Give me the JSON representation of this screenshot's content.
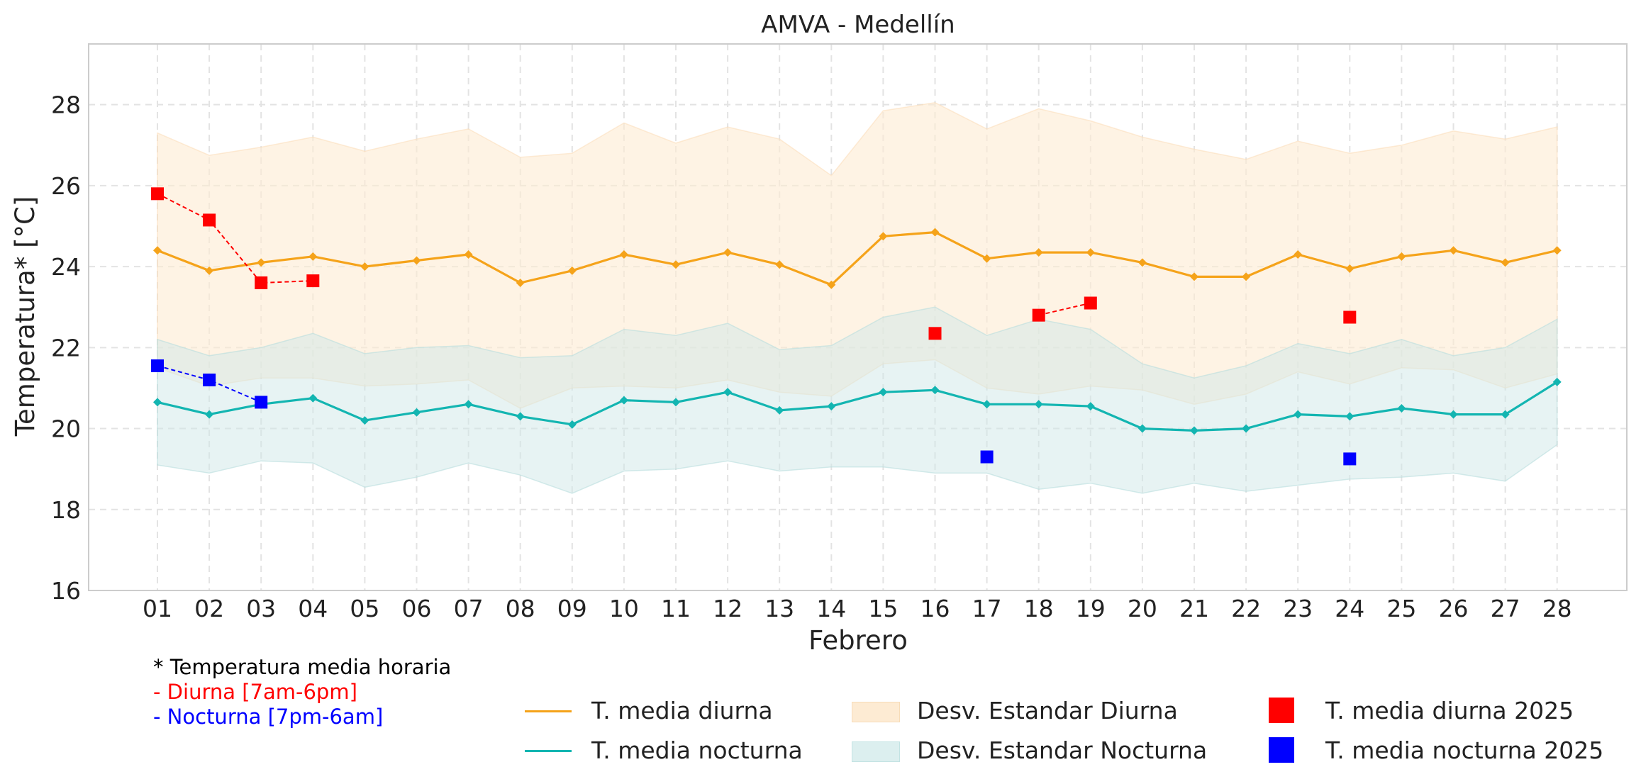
{
  "chart_data": {
    "type": "line",
    "title": "AMVA - Medellín",
    "xlabel": "Febrero",
    "ylabel": "Temperatura* [°C]",
    "ylim": [
      16,
      29.5
    ],
    "yticks": [
      16,
      18,
      20,
      22,
      24,
      26,
      28
    ],
    "grid": true,
    "categories": [
      "01",
      "02",
      "03",
      "04",
      "05",
      "06",
      "07",
      "08",
      "09",
      "10",
      "11",
      "12",
      "13",
      "14",
      "15",
      "16",
      "17",
      "18",
      "19",
      "20",
      "21",
      "22",
      "23",
      "24",
      "25",
      "26",
      "27",
      "28"
    ],
    "series": [
      {
        "name": "T. media diurna",
        "kind": "line",
        "color": "#f5a31a",
        "values": [
          24.4,
          23.9,
          24.1,
          24.25,
          24.0,
          24.15,
          24.3,
          23.6,
          23.9,
          24.3,
          24.05,
          24.35,
          24.05,
          23.55,
          24.75,
          24.85,
          24.2,
          24.35,
          24.35,
          24.1,
          23.75,
          23.75,
          24.3,
          23.95,
          24.25,
          24.4,
          24.1,
          24.4
        ]
      },
      {
        "name": "T. media nocturna",
        "kind": "line",
        "color": "#13b5b1",
        "values": [
          20.65,
          20.35,
          20.6,
          20.75,
          20.2,
          20.4,
          20.6,
          20.3,
          20.1,
          20.7,
          20.65,
          20.9,
          20.45,
          20.55,
          20.9,
          20.95,
          20.6,
          20.6,
          20.55,
          20.0,
          19.95,
          20.0,
          20.35,
          20.3,
          20.5,
          20.35,
          20.35,
          21.15
        ]
      },
      {
        "name": "Desv. Estandar Diurna",
        "kind": "band",
        "color": "#fdebd3",
        "upper": [
          27.3,
          26.75,
          26.95,
          27.2,
          26.85,
          27.15,
          27.4,
          26.7,
          26.8,
          27.55,
          27.05,
          27.45,
          27.15,
          26.25,
          27.85,
          28.05,
          27.4,
          27.9,
          27.6,
          27.2,
          26.9,
          26.65,
          27.1,
          26.8,
          27.0,
          27.35,
          27.15,
          27.45
        ],
        "lower": [
          21.5,
          21.05,
          21.25,
          21.25,
          21.05,
          21.1,
          21.2,
          20.5,
          21.0,
          21.05,
          21.0,
          21.2,
          20.9,
          20.8,
          21.6,
          21.7,
          21.0,
          20.85,
          21.05,
          20.95,
          20.6,
          20.85,
          21.4,
          21.1,
          21.5,
          21.45,
          21.0,
          21.35
        ]
      },
      {
        "name": "Desv. Estandar Nocturna",
        "kind": "band",
        "color": "#d9eeee",
        "upper": [
          22.2,
          21.8,
          22.0,
          22.35,
          21.85,
          22.0,
          22.05,
          21.75,
          21.8,
          22.45,
          22.3,
          22.6,
          21.95,
          22.05,
          22.75,
          23.0,
          22.3,
          22.7,
          22.45,
          21.6,
          21.25,
          21.55,
          22.1,
          21.85,
          22.2,
          21.8,
          22.0,
          22.7
        ]
      },
      {
        "name": "T. media diurna 2025",
        "kind": "markers",
        "color": "#ff0000",
        "points": [
          {
            "x": "01",
            "y": 25.8
          },
          {
            "x": "02",
            "y": 25.15
          },
          {
            "x": "03",
            "y": 23.6
          },
          {
            "x": "04",
            "y": 23.65
          },
          {
            "x": "16",
            "y": 22.35
          },
          {
            "x": "18",
            "y": 22.8
          },
          {
            "x": "19",
            "y": 23.1
          },
          {
            "x": "24",
            "y": 22.75
          }
        ],
        "connected_runs": [
          [
            "01",
            "02",
            "03",
            "04"
          ],
          [
            "18",
            "19"
          ]
        ]
      },
      {
        "name": "T. media nocturna 2025",
        "kind": "markers",
        "color": "#0000ff",
        "points": [
          {
            "x": "01",
            "y": 21.55
          },
          {
            "x": "02",
            "y": 21.2
          },
          {
            "x": "03",
            "y": 20.65
          },
          {
            "x": "17",
            "y": 19.3
          },
          {
            "x": "24",
            "y": 19.25
          }
        ],
        "connected_runs": [
          [
            "01",
            "02",
            "03"
          ]
        ]
      }
    ]
  },
  "notes": {
    "line1": "* Temperatura media horaria",
    "line2": "- Diurna [7am-6pm]",
    "line3": "- Nocturna [7pm-6am]",
    "line1_color": "#000000",
    "line2_color": "#ff0000",
    "line3_color": "#0000ff"
  },
  "legend": {
    "mean_day": "T. media diurna",
    "mean_night": "T. media nocturna",
    "std_day": "Desv. Estandar Diurna",
    "std_night": "Desv. Estandar Nocturna",
    "day_2025": "T. media diurna 2025",
    "night_2025": "T. media nocturna 2025"
  }
}
